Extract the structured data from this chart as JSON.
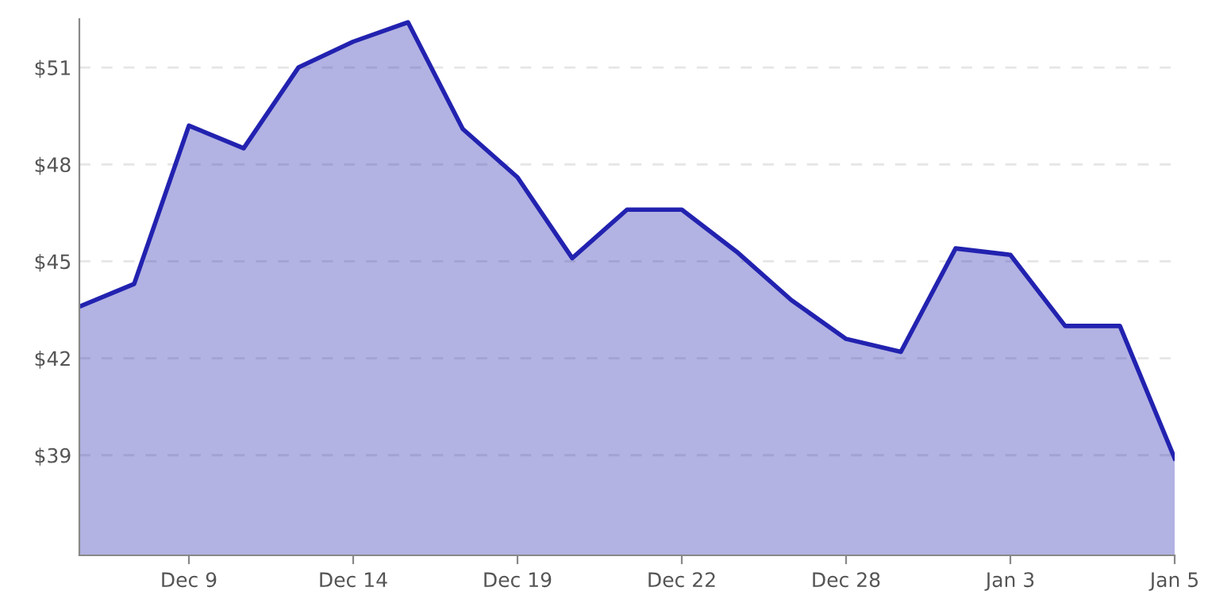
{
  "chart_data": {
    "type": "area",
    "categories": [
      null,
      null,
      "Dec 9",
      null,
      null,
      "Dec 14",
      null,
      null,
      "Dec 19",
      null,
      null,
      "Dec 22",
      null,
      null,
      "Dec 28",
      null,
      null,
      "Jan 3",
      null,
      null,
      "Jan 5"
    ],
    "series": [
      {
        "color": "#2222b0",
        "values": [
          43.6,
          44.3,
          49.2,
          48.5,
          51.0,
          51.8,
          52.4,
          49.1,
          47.6,
          45.1,
          46.6,
          46.6,
          45.3,
          43.8,
          42.6,
          42.2,
          45.4,
          45.2,
          43.0,
          43.0,
          38.9
        ]
      }
    ],
    "ylim": [
      35.9,
      52.5
    ],
    "yticks": [
      {
        "value": 39,
        "label": "$39"
      },
      {
        "value": 42,
        "label": "$42"
      },
      {
        "value": 45,
        "label": "$45"
      },
      {
        "value": 48,
        "label": "$48"
      },
      {
        "value": 51,
        "label": "$51"
      }
    ],
    "grid": "y"
  }
}
